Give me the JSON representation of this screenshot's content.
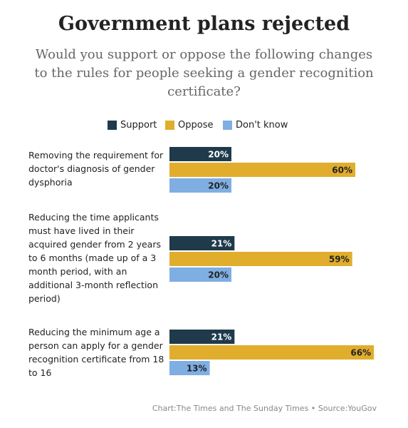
{
  "chart_data": {
    "type": "bar",
    "orientation": "horizontal",
    "title": "Government plans rejected",
    "subtitle": "Would you support or oppose the following changes to the rules for people seeking a gender recognition certificate?",
    "categories": [
      "Removing the requirement for doctor's diagnosis of gender dysphoria",
      "Reducing the time applicants must have lived in their acquired gender from 2 years to 6 months (made up of a 3 month period, with an additional 3-month reflection period)",
      "Reducing the minimum age a person can apply for a gender recognition certificate from 18 to 16"
    ],
    "series": [
      {
        "name": "Support",
        "color": "#1f3a4b",
        "values": [
          20,
          21,
          21
        ],
        "value_labels": [
          "20%",
          "21%",
          "21%"
        ]
      },
      {
        "name": "Oppose",
        "color": "#e1ad2c",
        "values": [
          60,
          59,
          66
        ],
        "value_labels": [
          "60%",
          "59%",
          "66%"
        ]
      },
      {
        "name": "Don't know",
        "color": "#7faee2",
        "values": [
          20,
          20,
          13
        ],
        "value_labels": [
          "20%",
          "20%",
          "13%"
        ]
      }
    ],
    "source": "Chart:The Times and The Sunday Times • Source:YouGov"
  }
}
